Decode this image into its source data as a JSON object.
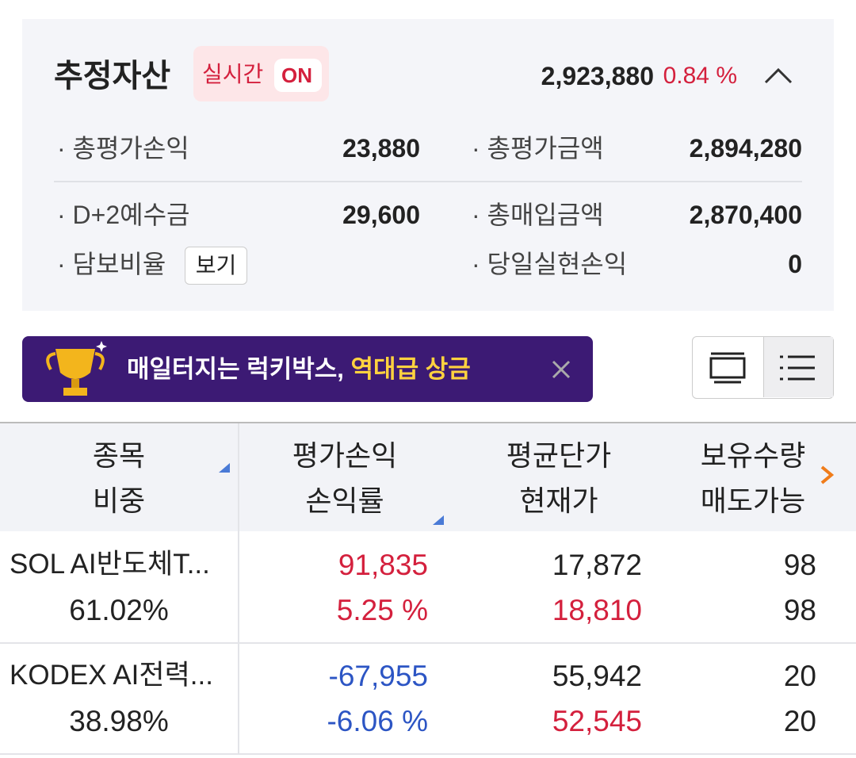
{
  "summary": {
    "title": "추정자산",
    "realtime_label": "실시간",
    "realtime_state": "ON",
    "total": "2,923,880",
    "total_rate": "0.84 %",
    "items": [
      {
        "label": "· 총평가손익",
        "value": "23,880"
      },
      {
        "label": "· 총평가금액",
        "value": "2,894,280"
      },
      {
        "label": "· D+2예수금",
        "value": "29,600"
      },
      {
        "label": "· 총매입금액",
        "value": "2,870,400"
      },
      {
        "label": "· 담보비율",
        "button": "보기"
      },
      {
        "label": "· 당일실현손익",
        "value": "0"
      }
    ]
  },
  "banner": {
    "text_main": "매일터지는 럭키박스,",
    "text_highlight": "역대급 상금"
  },
  "table": {
    "headers": [
      [
        "종목",
        "비중"
      ],
      [
        "평가손익",
        "손익률"
      ],
      [
        "평균단가",
        "현재가"
      ],
      [
        "보유수량",
        "매도가능"
      ]
    ],
    "rows": [
      [
        "SOL AI반도체T...",
        "61.02%",
        "91,835",
        "5.25 %",
        "17,872",
        "18,810",
        "98",
        "98"
      ],
      [
        "KODEX AI전력...",
        "38.98%",
        "-67,955",
        "-6.06 %",
        "55,942",
        "52,545",
        "20",
        "20"
      ]
    ]
  }
}
